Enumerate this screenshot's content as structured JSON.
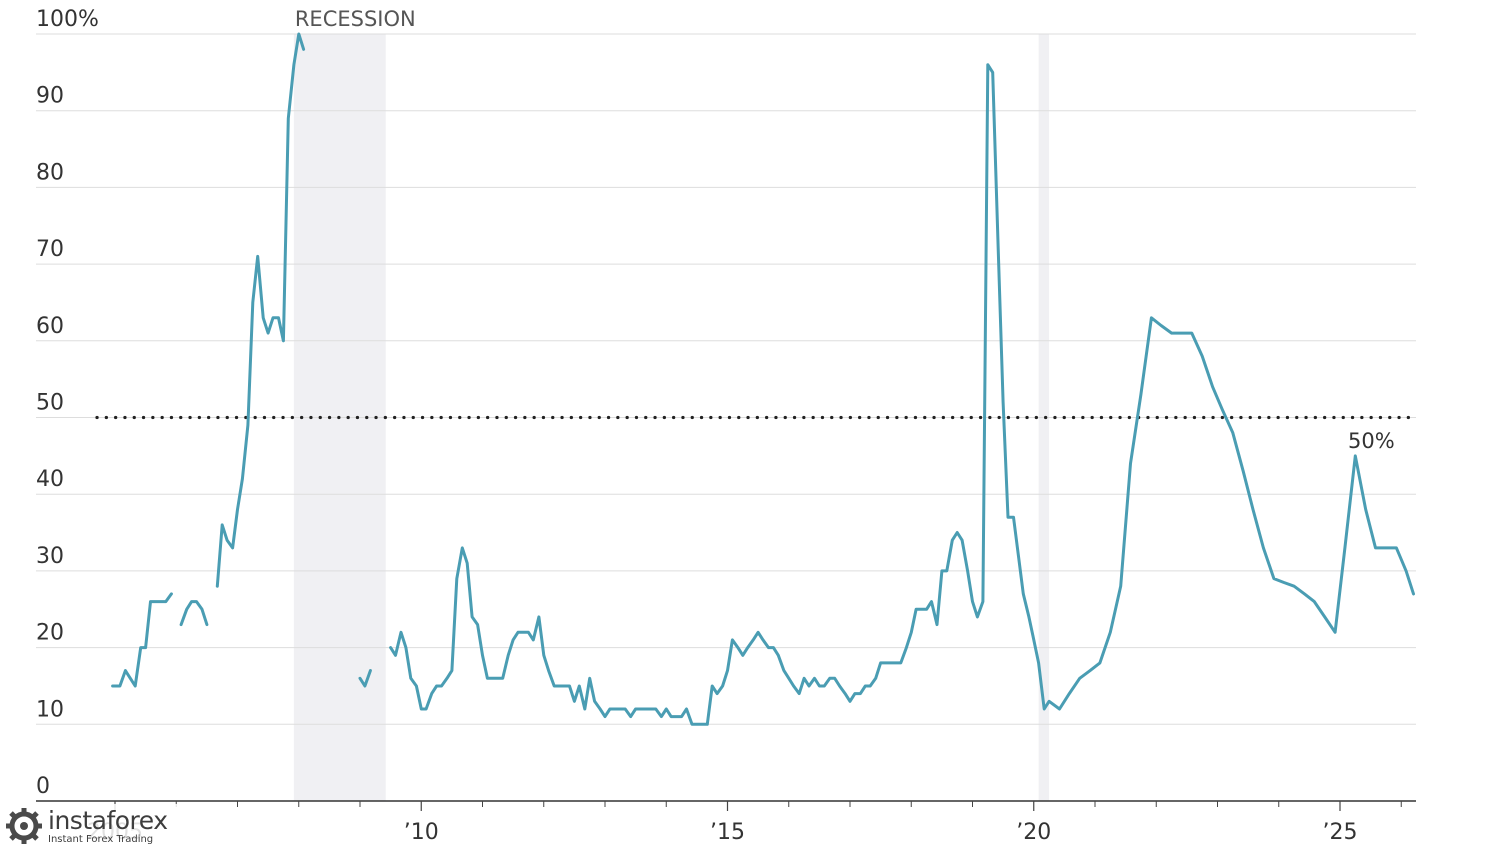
{
  "chart_data": {
    "type": "line",
    "title": "",
    "xlabel": "",
    "ylabel": "",
    "xlim": [
      2005.0,
      2026.2
    ],
    "ylim": [
      0,
      100
    ],
    "y_ticks": [
      {
        "value": 0,
        "label": "0"
      },
      {
        "value": 10,
        "label": "10"
      },
      {
        "value": 20,
        "label": "20"
      },
      {
        "value": 30,
        "label": "30"
      },
      {
        "value": 40,
        "label": "40"
      },
      {
        "value": 50,
        "label": "50"
      },
      {
        "value": 60,
        "label": "60"
      },
      {
        "value": 70,
        "label": "70"
      },
      {
        "value": 80,
        "label": "80"
      },
      {
        "value": 90,
        "label": "90"
      },
      {
        "value": 100,
        "label": "100%"
      }
    ],
    "x_ticks": [
      {
        "value": 2005,
        "label": "2005"
      },
      {
        "value": 2010,
        "label": "’10"
      },
      {
        "value": 2015,
        "label": "’15"
      },
      {
        "value": 2020,
        "label": "’20"
      },
      {
        "value": 2025,
        "label": "’25"
      }
    ],
    "minor_x_ticks": [
      2006,
      2007,
      2008,
      2009,
      2011,
      2012,
      2013,
      2014,
      2016,
      2017,
      2018,
      2019,
      2021,
      2022,
      2023,
      2024,
      2026
    ],
    "grid": true,
    "colors": {
      "line": "#4a9db3",
      "recession": "#f0f0f3",
      "grid": "#dddddd",
      "reference": "#222222"
    },
    "recessions": [
      {
        "start": 2007.92,
        "end": 2009.42,
        "label": "RECESSION"
      },
      {
        "start": 2020.08,
        "end": 2020.25,
        "label": ""
      }
    ],
    "reference_line": {
      "y": 50
    },
    "annotation": {
      "x": 2025.25,
      "y": 45,
      "label": "50%"
    },
    "series": [
      {
        "segments": [
          [
            [
              2004.96,
              15
            ],
            [
              2005.08,
              15
            ],
            [
              2005.17,
              17
            ],
            [
              2005.25,
              16
            ],
            [
              2005.33,
              15
            ],
            [
              2005.42,
              20
            ],
            [
              2005.5,
              20
            ],
            [
              2005.58,
              26
            ],
            [
              2005.67,
              26
            ],
            [
              2005.75,
              26
            ],
            [
              2005.83,
              26
            ],
            [
              2005.92,
              27
            ]
          ],
          [
            [
              2006.08,
              23
            ],
            [
              2006.17,
              25
            ],
            [
              2006.25,
              26
            ],
            [
              2006.33,
              26
            ],
            [
              2006.42,
              25
            ],
            [
              2006.5,
              23
            ]
          ],
          [
            [
              2006.67,
              28
            ],
            [
              2006.75,
              36
            ],
            [
              2006.83,
              34
            ],
            [
              2006.92,
              33
            ],
            [
              2007.0,
              38
            ],
            [
              2007.08,
              42
            ],
            [
              2007.17,
              49
            ],
            [
              2007.25,
              65
            ],
            [
              2007.33,
              71
            ],
            [
              2007.42,
              63
            ],
            [
              2007.5,
              61
            ],
            [
              2007.58,
              63
            ],
            [
              2007.67,
              63
            ],
            [
              2007.75,
              60
            ],
            [
              2007.83,
              89
            ],
            [
              2007.92,
              96
            ],
            [
              2008.0,
              100
            ],
            [
              2008.08,
              98
            ]
          ],
          [
            [
              2009.0,
              16
            ],
            [
              2009.08,
              15
            ],
            [
              2009.17,
              17
            ]
          ],
          [
            [
              2009.5,
              20
            ],
            [
              2009.58,
              19
            ],
            [
              2009.67,
              22
            ],
            [
              2009.75,
              20
            ],
            [
              2009.83,
              16
            ],
            [
              2009.92,
              15
            ],
            [
              2010.0,
              12
            ],
            [
              2010.08,
              12
            ],
            [
              2010.17,
              14
            ],
            [
              2010.25,
              15
            ],
            [
              2010.33,
              15
            ],
            [
              2010.42,
              16
            ],
            [
              2010.5,
              17
            ],
            [
              2010.58,
              29
            ],
            [
              2010.67,
              33
            ],
            [
              2010.75,
              31
            ],
            [
              2010.83,
              24
            ],
            [
              2010.92,
              23
            ],
            [
              2011.0,
              19
            ],
            [
              2011.08,
              16
            ],
            [
              2011.17,
              16
            ],
            [
              2011.25,
              16
            ],
            [
              2011.33,
              16
            ],
            [
              2011.42,
              19
            ],
            [
              2011.5,
              21
            ],
            [
              2011.58,
              22
            ],
            [
              2011.67,
              22
            ],
            [
              2011.75,
              22
            ],
            [
              2011.83,
              21
            ],
            [
              2011.92,
              24
            ],
            [
              2012.0,
              19
            ],
            [
              2012.08,
              17
            ],
            [
              2012.17,
              15
            ],
            [
              2012.25,
              15
            ],
            [
              2012.33,
              15
            ],
            [
              2012.42,
              15
            ],
            [
              2012.5,
              13
            ],
            [
              2012.58,
              15
            ],
            [
              2012.67,
              12
            ],
            [
              2012.75,
              16
            ],
            [
              2012.83,
              13
            ],
            [
              2012.92,
              12
            ],
            [
              2013.0,
              11
            ],
            [
              2013.08,
              12
            ],
            [
              2013.17,
              12
            ],
            [
              2013.25,
              12
            ],
            [
              2013.33,
              12
            ],
            [
              2013.42,
              11
            ],
            [
              2013.5,
              12
            ],
            [
              2013.58,
              12
            ],
            [
              2013.67,
              12
            ],
            [
              2013.75,
              12
            ],
            [
              2013.83,
              12
            ],
            [
              2013.92,
              11
            ],
            [
              2014.0,
              12
            ],
            [
              2014.08,
              11
            ],
            [
              2014.17,
              11
            ],
            [
              2014.25,
              11
            ],
            [
              2014.33,
              12
            ],
            [
              2014.42,
              10
            ],
            [
              2014.5,
              10
            ],
            [
              2014.58,
              10
            ],
            [
              2014.67,
              10
            ],
            [
              2014.75,
              15
            ],
            [
              2014.83,
              14
            ],
            [
              2014.92,
              15
            ],
            [
              2015.0,
              17
            ],
            [
              2015.08,
              21
            ],
            [
              2015.17,
              20
            ],
            [
              2015.25,
              19
            ],
            [
              2015.33,
              20
            ],
            [
              2015.42,
              21
            ],
            [
              2015.5,
              22
            ],
            [
              2015.58,
              21
            ],
            [
              2015.67,
              20
            ],
            [
              2015.75,
              20
            ],
            [
              2015.83,
              19
            ],
            [
              2015.92,
              17
            ],
            [
              2016.0,
              16
            ],
            [
              2016.08,
              15
            ],
            [
              2016.17,
              14
            ],
            [
              2016.25,
              16
            ],
            [
              2016.33,
              15
            ],
            [
              2016.42,
              16
            ],
            [
              2016.5,
              15
            ],
            [
              2016.58,
              15
            ],
            [
              2016.67,
              16
            ],
            [
              2016.75,
              16
            ],
            [
              2016.83,
              15
            ],
            [
              2016.92,
              14
            ],
            [
              2017.0,
              13
            ],
            [
              2017.08,
              14
            ],
            [
              2017.17,
              14
            ],
            [
              2017.25,
              15
            ],
            [
              2017.33,
              15
            ],
            [
              2017.42,
              16
            ],
            [
              2017.5,
              18
            ],
            [
              2017.58,
              18
            ],
            [
              2017.67,
              18
            ],
            [
              2017.75,
              18
            ],
            [
              2017.83,
              18
            ],
            [
              2017.92,
              20
            ],
            [
              2018.0,
              22
            ],
            [
              2018.08,
              25
            ],
            [
              2018.17,
              25
            ],
            [
              2018.25,
              25
            ],
            [
              2018.33,
              26
            ],
            [
              2018.42,
              23
            ],
            [
              2018.5,
              30
            ],
            [
              2018.58,
              30
            ],
            [
              2018.67,
              34
            ],
            [
              2018.75,
              35
            ],
            [
              2018.83,
              34
            ],
            [
              2018.92,
              30
            ],
            [
              2019.0,
              26
            ],
            [
              2019.08,
              24
            ],
            [
              2019.17,
              26
            ],
            [
              2019.25,
              96
            ],
            [
              2019.33,
              95
            ],
            [
              2019.42,
              72
            ],
            [
              2019.5,
              52
            ],
            [
              2019.58,
              37
            ],
            [
              2019.67,
              37
            ],
            [
              2019.75,
              32
            ],
            [
              2019.83,
              27
            ],
            [
              2019.92,
              24
            ],
            [
              2020.0,
              21
            ],
            [
              2020.08,
              18
            ],
            [
              2020.17,
              12
            ],
            [
              2020.25,
              13
            ],
            [
              2020.42,
              12
            ],
            [
              2020.58,
              14
            ],
            [
              2020.75,
              16
            ],
            [
              2020.92,
              17
            ],
            [
              2021.08,
              18
            ],
            [
              2021.25,
              22
            ],
            [
              2021.42,
              28
            ],
            [
              2021.58,
              44
            ],
            [
              2021.75,
              53
            ],
            [
              2021.92,
              63
            ],
            [
              2022.08,
              62
            ],
            [
              2022.25,
              61
            ],
            [
              2022.42,
              61
            ],
            [
              2022.58,
              61
            ],
            [
              2022.75,
              58
            ],
            [
              2022.92,
              54
            ],
            [
              2023.08,
              51
            ],
            [
              2023.25,
              48
            ],
            [
              2023.42,
              43
            ],
            [
              2023.58,
              38
            ],
            [
              2023.75,
              33
            ],
            [
              2023.92,
              29
            ],
            [
              2024.08,
              28.5
            ],
            [
              2024.25,
              28
            ],
            [
              2024.42,
              27
            ],
            [
              2024.58,
              26
            ],
            [
              2024.75,
              24
            ],
            [
              2024.92,
              22
            ],
            [
              2025.08,
              33
            ],
            [
              2025.25,
              45
            ],
            [
              2025.42,
              38
            ],
            [
              2025.58,
              33
            ],
            [
              2025.75,
              33
            ],
            [
              2025.92,
              33
            ],
            [
              2026.08,
              30
            ],
            [
              2026.2,
              27
            ]
          ]
        ]
      }
    ]
  },
  "watermark": {
    "brand": "instaforex",
    "tagline": "Instant Forex Trading"
  }
}
